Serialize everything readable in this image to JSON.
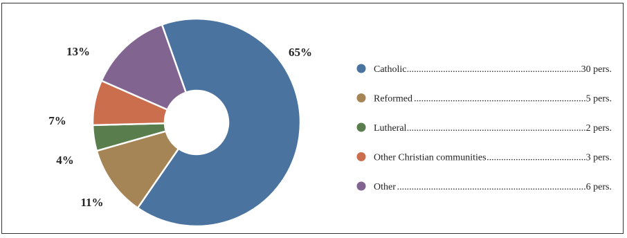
{
  "chart_data": {
    "type": "pie",
    "donut": true,
    "slices": [
      {
        "label": "Catholic",
        "percent": 65,
        "percent_label": "65%",
        "count_label": "30 pers.",
        "color": "#4a73a0"
      },
      {
        "label": "Reformed",
        "percent": 11,
        "percent_label": "11%",
        "count_label": "5 pers.",
        "color": "#a58456"
      },
      {
        "label": "Lutheral",
        "percent": 4,
        "percent_label": "4%",
        "count_label": "2 pers.",
        "color": "#5a7d4e"
      },
      {
        "label": "Other Christian communities",
        "percent": 7,
        "percent_label": "7%",
        "count_label": "3 pers.",
        "color": "#cb6e4e"
      },
      {
        "label": "Other",
        "percent": 13,
        "percent_label": "13%",
        "count_label": "6 pers.",
        "color": "#81648f"
      }
    ],
    "legend_position": "right",
    "slice_order": "clockwise from top"
  }
}
